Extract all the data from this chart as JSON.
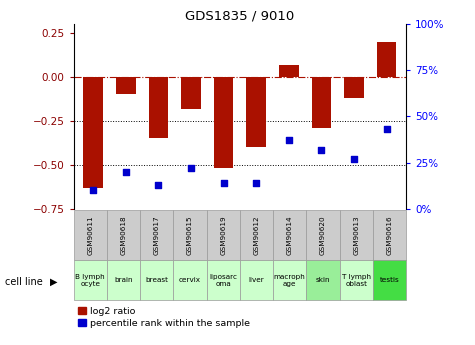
{
  "title": "GDS1835 / 9010",
  "samples": [
    "GSM90611",
    "GSM90618",
    "GSM90617",
    "GSM90615",
    "GSM90619",
    "GSM90612",
    "GSM90614",
    "GSM90620",
    "GSM90613",
    "GSM90616"
  ],
  "cell_lines": [
    "B lymph\nocyte",
    "brain",
    "breast",
    "cervix",
    "liposarc\noma",
    "liver",
    "macroph\nage",
    "skin",
    "T lymph\noblast",
    "testis"
  ],
  "cell_line_colors": [
    "#ccffcc",
    "#ccffcc",
    "#ccffcc",
    "#ccffcc",
    "#ccffcc",
    "#ccffcc",
    "#ccffcc",
    "#99ee99",
    "#ccffcc",
    "#44dd44"
  ],
  "log2_ratio": [
    -0.63,
    -0.1,
    -0.35,
    -0.18,
    -0.52,
    -0.4,
    0.07,
    -0.29,
    -0.12,
    0.2
  ],
  "percentile_rank": [
    10,
    20,
    13,
    22,
    14,
    14,
    37,
    32,
    27,
    43
  ],
  "bar_color": "#aa1100",
  "dot_color": "#0000cc",
  "left_ylim": [
    -0.75,
    0.3
  ],
  "right_ylim": [
    0,
    100
  ],
  "left_yticks": [
    -0.75,
    -0.5,
    -0.25,
    0,
    0.25
  ],
  "right_yticks": [
    0,
    25,
    50,
    75,
    100
  ],
  "right_yticklabels": [
    "0%",
    "25%",
    "50%",
    "75%",
    "100%"
  ],
  "hline_y": 0,
  "dotted_hlines": [
    -0.25,
    -0.5
  ],
  "bar_width": 0.6
}
